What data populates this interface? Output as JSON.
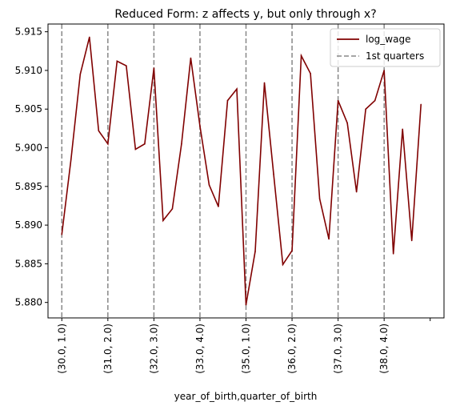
{
  "chart_data": {
    "type": "line",
    "title": "Reduced Form: z affects y, but only through x?",
    "xlabel": "year_of_birth,quarter_of_birth",
    "ylabel": "",
    "ylim": [
      5.878,
      5.916
    ],
    "yticks": [
      5.88,
      5.885,
      5.89,
      5.895,
      5.9,
      5.905,
      5.91,
      5.915
    ],
    "ytick_labels": [
      "5.880",
      "5.885",
      "5.890",
      "5.895",
      "5.900",
      "5.905",
      "5.910",
      "5.915"
    ],
    "x": [
      0,
      1,
      2,
      3,
      4,
      5,
      6,
      7,
      8,
      9,
      10,
      11,
      12,
      13,
      14,
      15,
      16,
      17,
      18,
      19,
      20,
      21,
      22,
      23,
      24,
      25,
      26,
      27,
      28,
      29,
      30,
      31,
      32,
      33,
      34,
      35,
      36,
      37,
      38,
      39
    ],
    "xlim": [
      -1.5,
      41.5
    ],
    "xticks": [
      0,
      5,
      10,
      15,
      20,
      25,
      30,
      35,
      40
    ],
    "xtick_labels": [
      "(30.0, 1.0)",
      "(31.0, 2.0)",
      "(32.0, 3.0)",
      "(33.0, 4.0)",
      "(35.0, 1.0)",
      "(36.0, 2.0)",
      "(37.0, 3.0)",
      "(38.0, 4.0)",
      ""
    ],
    "series": [
      {
        "name": "log_wage",
        "color": "#800000",
        "values": [
          5.8888,
          5.8985,
          5.9095,
          5.9143,
          5.9022,
          5.9005,
          5.9112,
          5.9106,
          5.8998,
          5.9005,
          5.9103,
          5.8906,
          5.8921,
          5.9005,
          5.9116,
          5.9028,
          5.8952,
          5.8924,
          5.9061,
          5.9076,
          5.8797,
          5.8866,
          5.9084,
          5.8966,
          5.8849,
          5.8867,
          5.9119,
          5.9096,
          5.8934,
          5.8882,
          5.9061,
          5.9032,
          5.8943,
          5.905,
          5.9061,
          5.91,
          5.8863,
          5.9024,
          5.888,
          5.9056
        ]
      }
    ],
    "vlines": {
      "name": "1st quarters",
      "color": "#888888",
      "style": "dashed",
      "x": [
        0,
        5,
        10,
        15,
        20,
        25,
        30,
        35
      ]
    },
    "legend_position": "top-right",
    "grid": false
  }
}
